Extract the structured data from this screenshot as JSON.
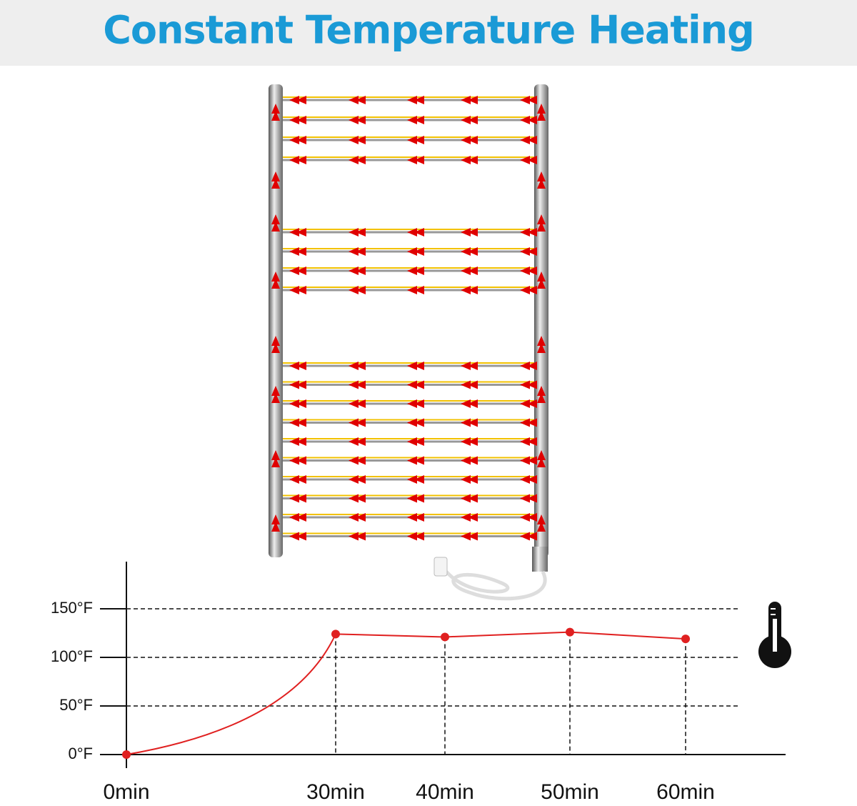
{
  "chart_data": {
    "type": "line",
    "title": "Constant Temperature Heating",
    "categories": [
      "0min",
      "30min",
      "40min",
      "50min",
      "60min"
    ],
    "series": [
      {
        "color": "#e02020",
        "values": [
          0,
          124,
          121,
          126,
          119
        ]
      }
    ],
    "ylim": [
      0,
      200
    ],
    "yticks": [
      {
        "value": 0,
        "label": "0°F"
      },
      {
        "value": 50,
        "label": "50°F"
      },
      {
        "value": 100,
        "label": "100°F"
      },
      {
        "value": 150,
        "label": "150°F"
      }
    ],
    "grid": true
  }
}
